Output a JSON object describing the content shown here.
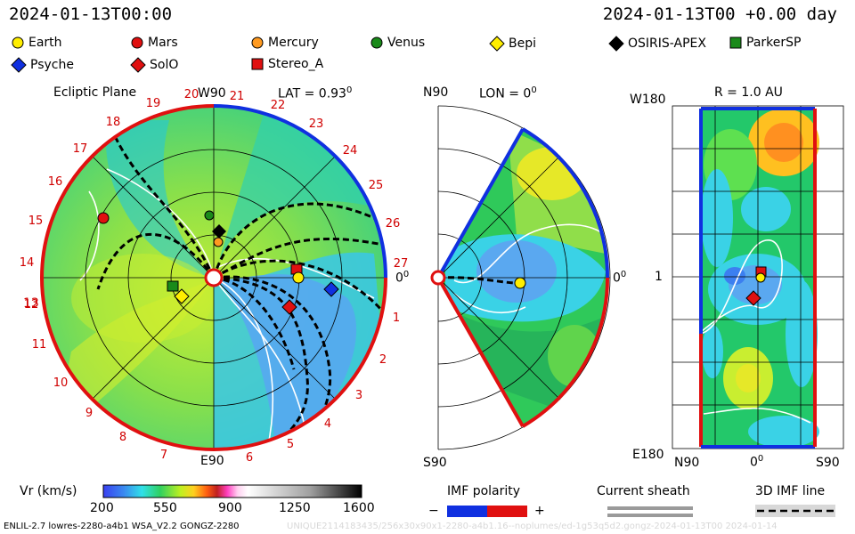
{
  "header": {
    "datetime": "2024-01-13T00:00",
    "forecast": "2024-01-13T00 +0.00 day"
  },
  "legend": [
    {
      "name": "Earth",
      "color": "#ffee00",
      "shape": "circle"
    },
    {
      "name": "Mars",
      "color": "#e01010",
      "shape": "circle"
    },
    {
      "name": "Mercury",
      "color": "#ff9a20",
      "shape": "circle"
    },
    {
      "name": "Venus",
      "color": "#1a8a1a",
      "shape": "circle"
    },
    {
      "name": "Bepi",
      "color": "#ffee00",
      "shape": "diamond"
    },
    {
      "name": "OSIRIS-APEX",
      "color": "#000000",
      "shape": "diamond"
    },
    {
      "name": "ParkerSP",
      "color": "#1a8a1a",
      "shape": "square"
    },
    {
      "name": "Psyche",
      "color": "#1030e0",
      "shape": "diamond"
    },
    {
      "name": "SolO",
      "color": "#e01010",
      "shape": "diamond"
    },
    {
      "name": "Stereo_A",
      "color": "#e01010",
      "shape": "square"
    }
  ],
  "ecliptic": {
    "title": "Ecliptic Plane",
    "lat": "LAT = 0.93",
    "lat_deg": "0",
    "w90": "W90",
    "e90": "E90",
    "zero": "0",
    "zero_deg": "0",
    "carrington_ticks": [
      "1",
      "2",
      "3",
      "4",
      "5",
      "6",
      "7",
      "8",
      "9",
      "10",
      "11",
      "12",
      "13",
      "14",
      "15",
      "16",
      "17",
      "18",
      "19",
      "20",
      "21",
      "22",
      "23",
      "24",
      "25",
      "26",
      "27"
    ]
  },
  "meridional": {
    "n90": "N90",
    "s90": "S90",
    "lon": "LON = 0",
    "lon_deg": "0",
    "zero": "0",
    "zero_deg": "0"
  },
  "latlon": {
    "r": "R = 1.0 AU",
    "w180": "W180",
    "e180": "E180",
    "one": "1",
    "n90": "N90",
    "zero": "0",
    "zero_deg": "0",
    "s90": "S90"
  },
  "colorbar": {
    "label": "Vr (km/s)",
    "ticks": [
      "200",
      "550",
      "900",
      "1250",
      "1600"
    ],
    "vmin": 200,
    "vmax": 1600
  },
  "imf": {
    "label": "IMF polarity",
    "minus": "−",
    "plus": "+",
    "colors": [
      "#1030e0",
      "#e01010"
    ]
  },
  "sheath_label": "Current sheath",
  "imf_line_label": "3D IMF line",
  "footer": "ENLIL-2.7 lowres-2280-a4b1 WSA_V2.2 GONGZ-2280",
  "footer_right": "UNIQUE2114183435/256x30x90x1-2280-a4b1.16--noplumes/ed-1g53q5d2.gongz-2024-01-13T00   2024-01-14"
}
